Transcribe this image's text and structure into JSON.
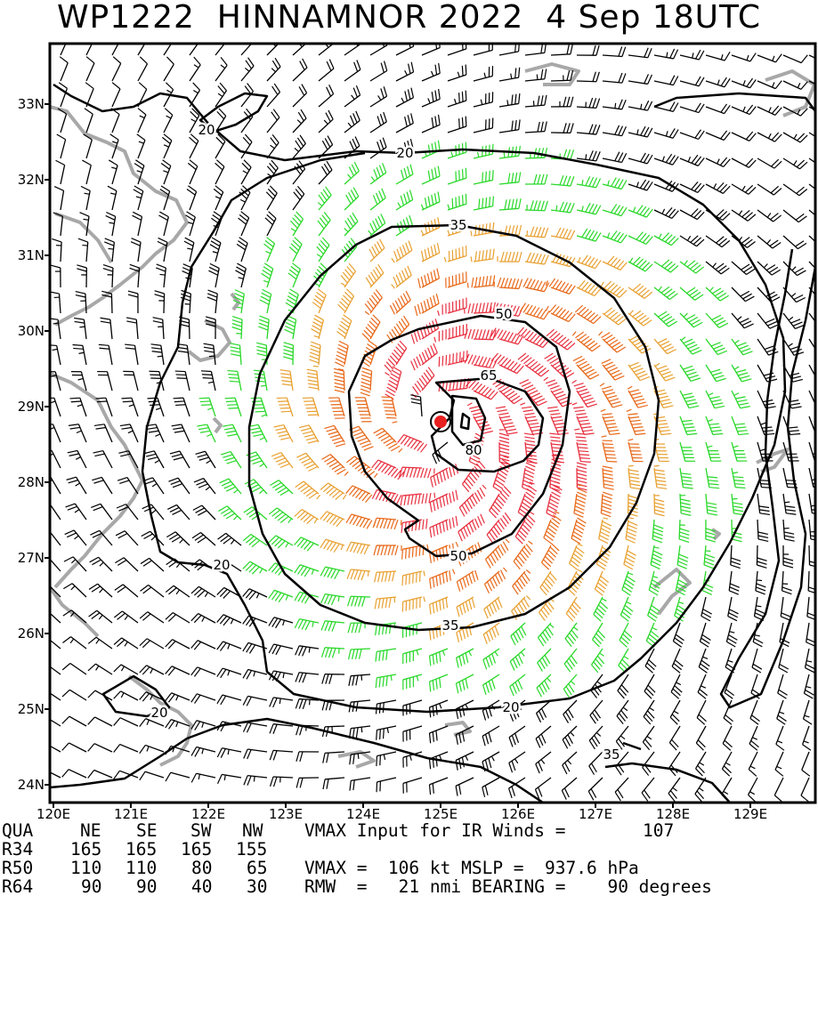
{
  "title": "WP1222  HINNAMNOR 2022  4 Sep 18UTC",
  "map": {
    "lat_labels": [
      "33N",
      "32N",
      "31N",
      "30N",
      "29N",
      "28N",
      "27N",
      "26N",
      "25N",
      "24N"
    ],
    "lon_labels": [
      "120E",
      "121E",
      "122E",
      "123E",
      "124E",
      "125E",
      "126E",
      "127E",
      "128E",
      "129E"
    ],
    "contour_levels_kt": [
      "20",
      "20",
      "20",
      "20",
      "20",
      "35",
      "35",
      "35",
      "50",
      "50",
      "65",
      "80"
    ],
    "storm_center": {
      "lat": 28.8,
      "lon": 125.0
    },
    "colors": {
      "frame": "#000000",
      "coast": "#a8a8a8",
      "barb_lt34": "#000000",
      "barb_34_49": "#28d828",
      "barb_50_63": "#e8a030",
      "barb_64_79": "#e86818",
      "barb_ge80": "#e83040",
      "center": "#e82020"
    }
  },
  "footer": {
    "quad_header": [
      "QUA",
      "NE",
      "SE",
      "SW",
      "NW"
    ],
    "vmax_input_text": "VMAX Input for IR Winds =",
    "vmax_input_value": "107",
    "r34": {
      "label": "R34",
      "values": [
        "165",
        "165",
        "165",
        "155"
      ]
    },
    "r50": {
      "label": "R50",
      "values": [
        "110",
        "110",
        "80",
        "65"
      ],
      "text": "VMAX =  106 kt MSLP =  937.6 hPa"
    },
    "r64": {
      "label": "R64",
      "values": [
        "90",
        "90",
        "40",
        "30"
      ],
      "text": "RMW  =   21 nmi BEARING =    90 degrees"
    }
  }
}
